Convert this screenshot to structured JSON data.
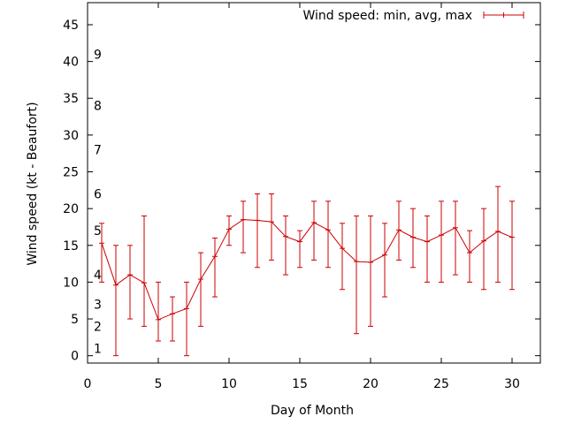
{
  "chart_data": {
    "type": "line",
    "title": "",
    "xlabel": "Day of Month",
    "ylabel": "Wind speed (kt - Beaufort)",
    "xlim": [
      0,
      32
    ],
    "ylim": [
      -1,
      48
    ],
    "xticks": [
      0,
      5,
      10,
      15,
      20,
      25,
      30
    ],
    "yticks": [
      0,
      5,
      10,
      15,
      20,
      25,
      30,
      35,
      40,
      45
    ],
    "grid": false,
    "legend": "top-right",
    "beaufort_labels": [
      {
        "label": "1",
        "kt": 1
      },
      {
        "label": "2",
        "kt": 4
      },
      {
        "label": "3",
        "kt": 7
      },
      {
        "label": "4",
        "kt": 11
      },
      {
        "label": "5",
        "kt": 17
      },
      {
        "label": "6",
        "kt": 22
      },
      {
        "label": "7",
        "kt": 28
      },
      {
        "label": "8",
        "kt": 34
      },
      {
        "label": "9",
        "kt": 41
      }
    ],
    "series": [
      {
        "name": "Wind speed: min, avg, max",
        "color": "#cc0000",
        "x": [
          1,
          2,
          3,
          4,
          5,
          6,
          7,
          8,
          9,
          10,
          11,
          12,
          13,
          14,
          15,
          16,
          17,
          18,
          19,
          20,
          21,
          22,
          23,
          24,
          25,
          26,
          27,
          28,
          29,
          30
        ],
        "avg": [
          15.3,
          9.6,
          11.0,
          9.9,
          4.9,
          5.7,
          6.4,
          10.4,
          13.5,
          17.2,
          18.5,
          18.4,
          18.2,
          16.2,
          15.5,
          18.1,
          17.1,
          14.6,
          12.8,
          12.7,
          13.7,
          17.1,
          16.1,
          15.5,
          16.4,
          17.4,
          14.0,
          15.6,
          16.9,
          16.1
        ],
        "min": [
          10,
          0,
          5,
          4,
          2,
          2,
          0,
          4,
          8,
          15,
          14,
          12,
          13,
          11,
          12,
          13,
          12,
          9,
          3,
          4,
          8,
          13,
          12,
          10,
          10,
          11,
          10,
          9,
          10,
          9
        ],
        "max": [
          18,
          15,
          15,
          19,
          10,
          8,
          10,
          14,
          16,
          19,
          21,
          22,
          22,
          19,
          17,
          21,
          21,
          18,
          19,
          19,
          18,
          21,
          20,
          19,
          21,
          21,
          17,
          20,
          23,
          21
        ]
      }
    ]
  }
}
